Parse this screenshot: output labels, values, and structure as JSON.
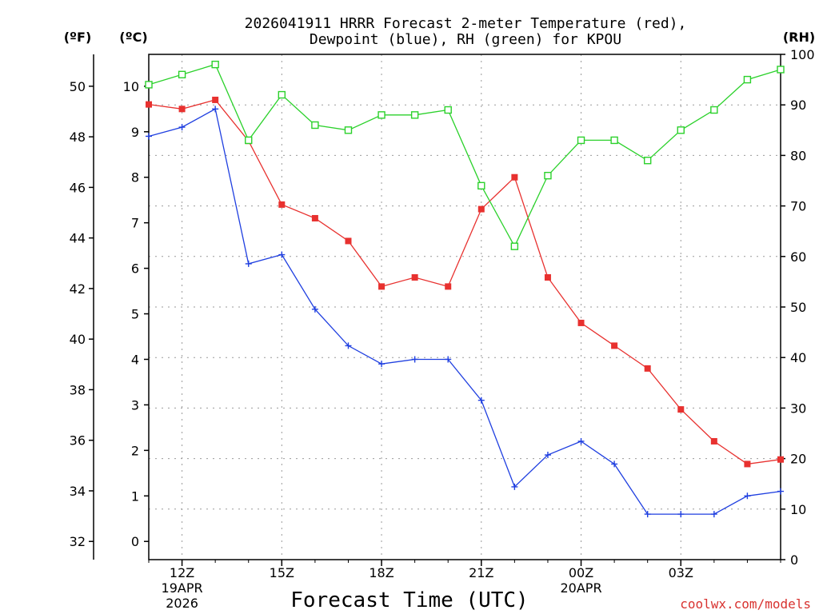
{
  "chart_data": {
    "type": "line",
    "title_line1": "2026041911 HRRR Forecast 2-meter Temperature (red),",
    "title_line2": "Dewpoint (blue), RH (green) for KPOU",
    "xlabel": "Forecast Time (UTC)",
    "credit": "coolwx.com/models",
    "left_outer_unit": "(ºF)",
    "left_inner_unit": "(ºC)",
    "right_unit": "(RH)",
    "x_hours": [
      0,
      1,
      2,
      3,
      4,
      5,
      6,
      7,
      8,
      9,
      10,
      11,
      12,
      13,
      14,
      15,
      16,
      17,
      18,
      19
    ],
    "x_ticks": [
      {
        "hour": 1,
        "line1": "12Z",
        "line2": "19APR",
        "line3": "2026"
      },
      {
        "hour": 4,
        "line1": "15Z",
        "line2": "",
        "line3": ""
      },
      {
        "hour": 7,
        "line1": "18Z",
        "line2": "",
        "line3": ""
      },
      {
        "hour": 10,
        "line1": "21Z",
        "line2": "",
        "line3": ""
      },
      {
        "hour": 13,
        "line1": "00Z",
        "line2": "20APR",
        "line3": ""
      },
      {
        "hour": 16,
        "line1": "03Z",
        "line2": "",
        "line3": ""
      }
    ],
    "celsius_ticks": [
      "0",
      "1",
      "2",
      "3",
      "4",
      "5",
      "6",
      "7",
      "8",
      "9",
      "10"
    ],
    "fahrenheit_ticks": [
      "32",
      "34",
      "36",
      "38",
      "40",
      "42",
      "44",
      "46",
      "48",
      "50"
    ],
    "rh_ticks": [
      "0",
      "10",
      "20",
      "30",
      "40",
      "50",
      "60",
      "70",
      "80",
      "90",
      "100"
    ],
    "ylim_celsius": [
      -0.4,
      10.7
    ],
    "ylim_rh": [
      0,
      100
    ],
    "series": [
      {
        "name": "Temperature",
        "axis": "celsius",
        "color": "#e8312f",
        "marker": "filled-square",
        "values": [
          9.6,
          9.5,
          9.7,
          8.8,
          7.4,
          7.1,
          6.6,
          5.6,
          5.8,
          5.6,
          7.3,
          8.0,
          5.8,
          4.8,
          4.3,
          3.8,
          2.9,
          2.2,
          1.7,
          1.8
        ]
      },
      {
        "name": "Dewpoint",
        "axis": "celsius",
        "color": "#1f3fe0",
        "marker": "plus",
        "values": [
          8.9,
          9.1,
          9.5,
          6.1,
          6.3,
          5.1,
          4.3,
          3.9,
          4.0,
          4.0,
          3.1,
          1.2,
          1.9,
          2.2,
          1.7,
          0.6,
          0.6,
          0.6,
          1.0,
          1.1
        ]
      },
      {
        "name": "RH",
        "axis": "rh",
        "color": "#2bd12b",
        "marker": "open-square",
        "values": [
          94,
          96,
          98,
          83,
          92,
          86,
          85,
          88,
          88,
          89,
          74,
          62,
          76,
          83,
          83,
          79,
          85,
          89,
          95,
          97
        ]
      }
    ]
  }
}
